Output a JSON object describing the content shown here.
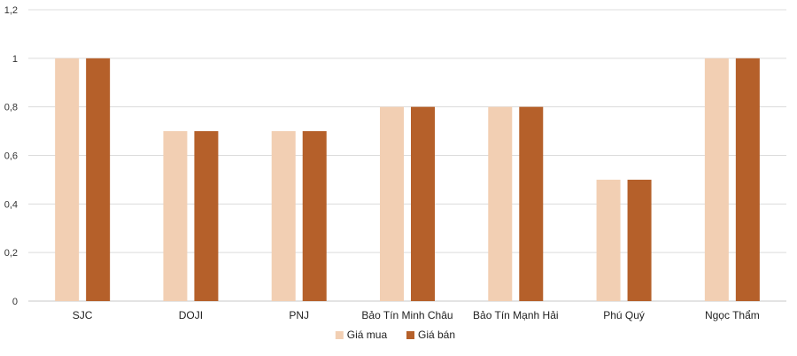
{
  "chart_data": {
    "type": "bar",
    "categories": [
      "SJC",
      "DOJI",
      "PNJ",
      "Bảo Tín Minh Châu",
      "Bảo Tín Mạnh Hải",
      "Phú Quý",
      "Ngọc Thẩm"
    ],
    "series": [
      {
        "name": "Giá mua",
        "values": [
          1,
          0.7,
          0.7,
          0.8,
          0.8,
          0.5,
          1
        ],
        "color": "#f2cfb3"
      },
      {
        "name": "Giá bán",
        "values": [
          1,
          0.7,
          0.7,
          0.8,
          0.8,
          0.5,
          1
        ],
        "color": "#b5602a"
      }
    ],
    "y_ticks": [
      "0",
      "0,2",
      "0,4",
      "0,6",
      "0,8",
      "1",
      "1,2"
    ],
    "ylim": [
      0,
      1.2
    ],
    "grid": true,
    "legend_position": "bottom",
    "title": "",
    "xlabel": "",
    "ylabel": ""
  }
}
